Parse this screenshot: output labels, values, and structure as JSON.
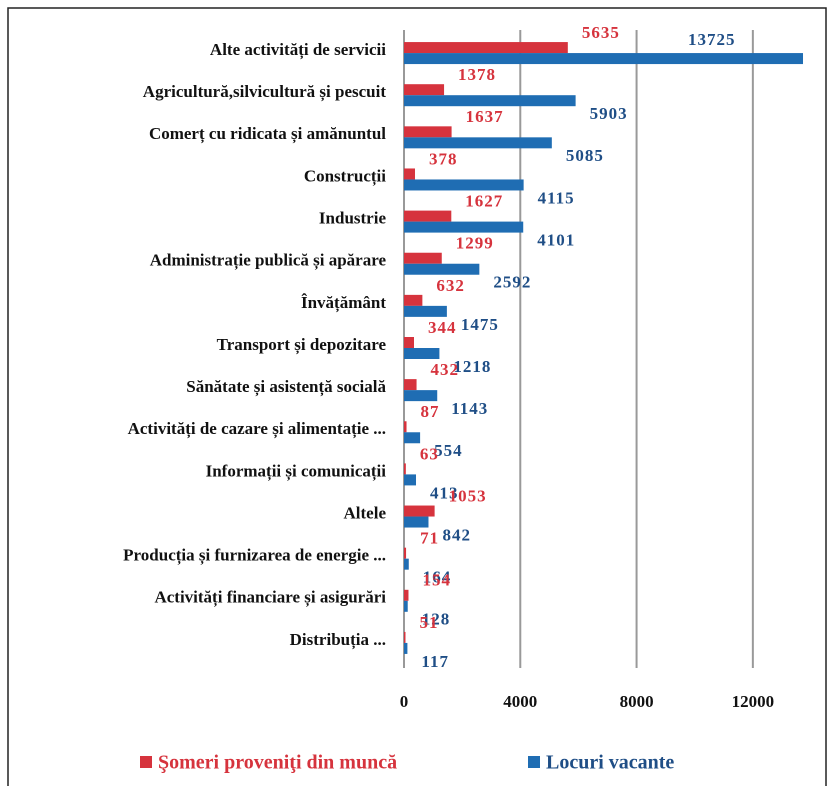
{
  "chart_data": {
    "type": "bar",
    "orientation": "horizontal",
    "categories": [
      "Alte activități de servicii",
      "Agricultură,silvicultură  și pescuit",
      "Comerț cu ridicata și amănuntul",
      "Construcții",
      "Industrie",
      "Administrație  publică și apărare",
      "Învățământ",
      "Transport  și depozitare",
      "Sănătate și asistență  socială",
      "Activități de cazare și alimentație ...",
      "Informații  și comunicații",
      "Altele",
      "Producția  și furnizarea de energie ...",
      "Activități financiare și asigurări",
      "Distribuția ..."
    ],
    "series": [
      {
        "name": "Şomeri proveniţi  din muncă",
        "color": "#d6333d",
        "label_color": "#d6333d",
        "values": [
          5635,
          1378,
          1637,
          378,
          1627,
          1299,
          632,
          344,
          432,
          87,
          63,
          1053,
          71,
          154,
          51
        ]
      },
      {
        "name": "Locuri vacante",
        "color": "#1f6db3",
        "label_color": "#1f4e86",
        "values": [
          13725,
          5903,
          5085,
          4115,
          4101,
          2592,
          1475,
          1218,
          1143,
          554,
          413,
          842,
          164,
          128,
          117
        ]
      }
    ],
    "xlim": [
      0,
      14000
    ],
    "xticks": [
      0,
      4000,
      8000,
      12000
    ],
    "grid": true,
    "legend": "bottom"
  }
}
